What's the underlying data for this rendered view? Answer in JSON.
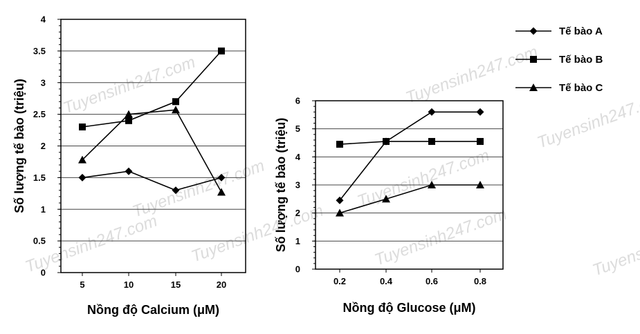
{
  "watermark": "Tuyensinh247.com",
  "legend": [
    {
      "label": "Tế bào A",
      "marker": "diamond"
    },
    {
      "label": "Tế bào B",
      "marker": "square"
    },
    {
      "label": "Tế bào C",
      "marker": "triangle"
    }
  ],
  "chart_data": [
    {
      "type": "line",
      "xlabel": "Nồng độ Calcium (μM)",
      "ylabel": "Số lượng tế bào (triệu)",
      "categories": [
        "5",
        "10",
        "15",
        "20"
      ],
      "ylim": [
        0,
        4
      ],
      "yticks": [
        "0",
        "0.5",
        "1",
        "1.5",
        "2",
        "2.5",
        "3",
        "3.5",
        "4"
      ],
      "grid": true,
      "series": [
        {
          "name": "Tế bào A",
          "values": [
            1.5,
            1.6,
            1.3,
            1.5
          ]
        },
        {
          "name": "Tế bào B",
          "values": [
            2.3,
            2.4,
            2.7,
            3.5
          ]
        },
        {
          "name": "Tế bào C",
          "values": [
            1.78,
            2.5,
            2.57,
            1.27
          ]
        }
      ]
    },
    {
      "type": "line",
      "xlabel": "Nồng độ Glucose (μM)",
      "ylabel": "Số lượng tế bào (triệu)",
      "categories": [
        "0.2",
        "0.4",
        "0.6",
        "0.8"
      ],
      "ylim": [
        0,
        6
      ],
      "yticks": [
        "0",
        "1",
        "2",
        "3",
        "4",
        "5",
        "6"
      ],
      "grid": true,
      "series": [
        {
          "name": "Tế bào A",
          "values": [
            2.45,
            4.55,
            5.6,
            5.6
          ]
        },
        {
          "name": "Tế bào B",
          "values": [
            4.45,
            4.55,
            4.55,
            4.55
          ]
        },
        {
          "name": "Tế bào C",
          "values": [
            2.0,
            2.5,
            3.0,
            3.0
          ]
        }
      ]
    }
  ]
}
